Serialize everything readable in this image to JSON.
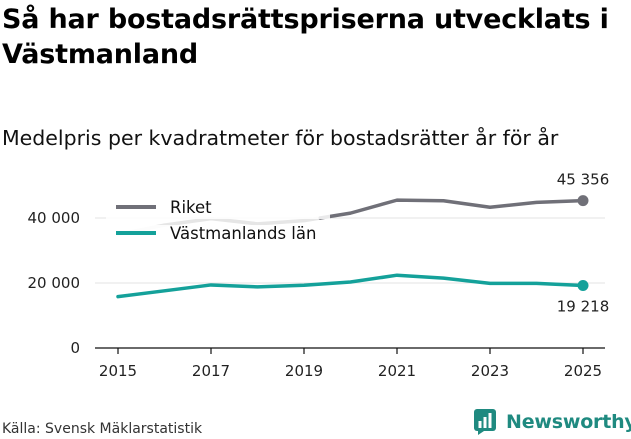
{
  "title": "Så har bostadsrättspriserna utvecklats i Västmanland",
  "subtitle": "Medelpris per kvadratmeter för bostadsrätter år för år",
  "source": "Källa: Svensk Mäklarstatistik",
  "brand": "Newsworthy",
  "colors": {
    "riket": "#707078",
    "riket_faded": "#e6e6e6",
    "lan": "#14a19a",
    "grid": "#e3e3e3",
    "axis": "#111111",
    "brand": "#1f8a80"
  },
  "chart_data": {
    "type": "line",
    "title": "Medelpris per kvadratmeter för bostadsrätter år för år",
    "xlabel": "",
    "ylabel": "",
    "x": [
      2015,
      2016,
      2017,
      2018,
      2019,
      2020,
      2021,
      2022,
      2023,
      2024,
      2025
    ],
    "xticks": [
      "2015",
      "2017",
      "2019",
      "2021",
      "2023",
      "2025"
    ],
    "yticks": [
      {
        "value": 0,
        "label": "0"
      },
      {
        "value": 20000,
        "label": "20 000"
      },
      {
        "value": 40000,
        "label": "40 000"
      }
    ],
    "ylim": [
      0,
      50000
    ],
    "grid": true,
    "legend_position": "top-left",
    "series": [
      {
        "name": "Riket",
        "values": [
          35000,
          37800,
          39800,
          38200,
          39200,
          41500,
          45500,
          45300,
          43300,
          44800,
          45356
        ]
      },
      {
        "name": "Västmanlands län",
        "values": [
          15800,
          17600,
          19400,
          18800,
          19300,
          20300,
          22400,
          21500,
          19900,
          19900,
          19218
        ]
      }
    ],
    "annotations": [
      {
        "series": "Riket",
        "x": 2025,
        "label": "45 356"
      },
      {
        "series": "Västmanlands län",
        "x": 2025,
        "label": "19 218"
      }
    ]
  }
}
